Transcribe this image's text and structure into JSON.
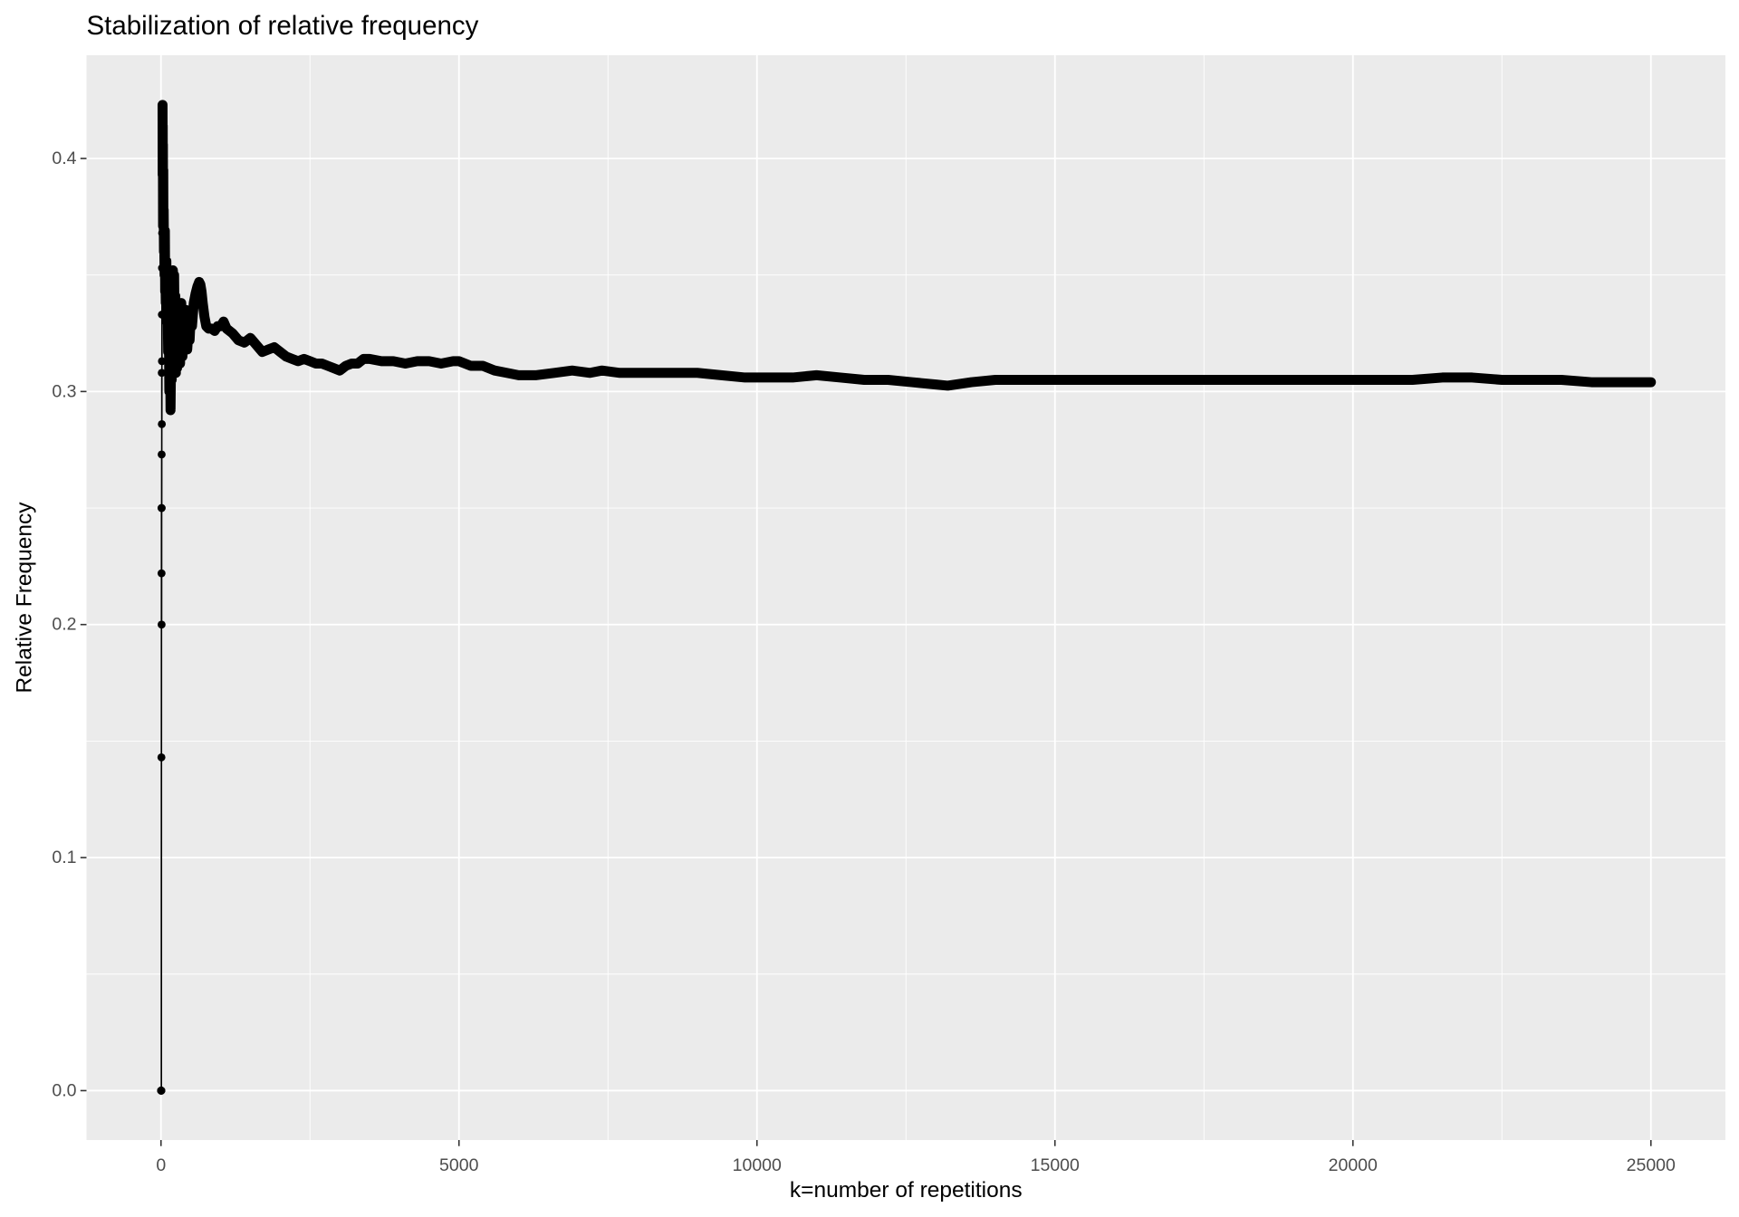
{
  "chart_data": {
    "type": "line",
    "markers": true,
    "title": "Stabilization of relative frequency",
    "xlabel": "k=number of repetitions",
    "ylabel": "Relative Frequency",
    "xlim": [
      -1250,
      26250
    ],
    "ylim": [
      -0.0212,
      0.4443
    ],
    "x_ticks": [
      0,
      5000,
      10000,
      15000,
      20000,
      25000
    ],
    "x_tick_labels": [
      "0",
      "5000",
      "10000",
      "15000",
      "20000",
      "25000"
    ],
    "y_ticks": [
      0.0,
      0.1,
      0.2,
      0.3,
      0.4
    ],
    "y_tick_labels": [
      "0.0",
      "0.1",
      "0.2",
      "0.3",
      "0.4"
    ],
    "grid": true,
    "colors": {
      "panel": "#EBEBEB",
      "grid": "#FFFFFF",
      "series": "#000000"
    },
    "series": [
      {
        "points": [
          [
            1,
            0
          ],
          [
            2,
            0
          ],
          [
            3,
            0
          ],
          [
            4,
            0
          ],
          [
            5,
            0
          ],
          [
            6,
            0
          ],
          [
            7,
            0.143
          ],
          [
            8,
            0.25
          ],
          [
            9,
            0.222
          ],
          [
            10,
            0.2
          ],
          [
            11,
            0.273
          ],
          [
            12,
            0.25
          ],
          [
            13,
            0.308
          ],
          [
            14,
            0.286
          ],
          [
            15,
            0.333
          ],
          [
            16,
            0.313
          ],
          [
            17,
            0.353
          ],
          [
            18,
            0.389
          ],
          [
            19,
            0.368
          ],
          [
            20,
            0.4
          ],
          [
            21,
            0.381
          ],
          [
            22,
            0.409
          ],
          [
            23,
            0.391
          ],
          [
            24,
            0.417
          ],
          [
            25,
            0.4
          ],
          [
            26,
            0.423
          ],
          [
            27,
            0.407
          ],
          [
            28,
            0.393
          ],
          [
            29,
            0.414
          ],
          [
            30,
            0.4
          ],
          [
            32,
            0.406
          ],
          [
            35,
            0.371
          ],
          [
            38,
            0.395
          ],
          [
            40,
            0.375
          ],
          [
            45,
            0.378
          ],
          [
            50,
            0.36
          ],
          [
            55,
            0.364
          ],
          [
            60,
            0.35
          ],
          [
            65,
            0.369
          ],
          [
            70,
            0.343
          ],
          [
            75,
            0.347
          ],
          [
            80,
            0.338
          ],
          [
            90,
            0.356
          ],
          [
            100,
            0.33
          ],
          [
            110,
            0.345
          ],
          [
            120,
            0.317
          ],
          [
            130,
            0.338
          ],
          [
            140,
            0.3
          ],
          [
            150,
            0.327
          ],
          [
            160,
            0.292
          ],
          [
            170,
            0.318
          ],
          [
            180,
            0.305
          ],
          [
            190,
            0.339
          ],
          [
            200,
            0.352
          ],
          [
            210,
            0.33
          ],
          [
            220,
            0.35
          ],
          [
            230,
            0.322
          ],
          [
            240,
            0.341
          ],
          [
            250,
            0.308
          ],
          [
            260,
            0.326
          ],
          [
            270,
            0.31
          ],
          [
            280,
            0.335
          ],
          [
            290,
            0.318
          ],
          [
            300,
            0.331
          ],
          [
            320,
            0.312
          ],
          [
            340,
            0.338
          ],
          [
            360,
            0.315
          ],
          [
            380,
            0.329
          ],
          [
            400,
            0.32
          ],
          [
            420,
            0.335
          ],
          [
            440,
            0.318
          ],
          [
            460,
            0.326
          ],
          [
            480,
            0.322
          ],
          [
            500,
            0.333
          ],
          [
            520,
            0.328
          ],
          [
            550,
            0.338
          ],
          [
            580,
            0.342
          ],
          [
            610,
            0.345
          ],
          [
            640,
            0.347
          ],
          [
            660,
            0.346
          ],
          [
            680,
            0.343
          ],
          [
            700,
            0.338
          ],
          [
            730,
            0.332
          ],
          [
            760,
            0.328
          ],
          [
            800,
            0.327
          ],
          [
            850,
            0.327
          ],
          [
            900,
            0.326
          ],
          [
            950,
            0.328
          ],
          [
            1000,
            0.328
          ],
          [
            1050,
            0.33
          ],
          [
            1100,
            0.327
          ],
          [
            1200,
            0.325
          ],
          [
            1300,
            0.322
          ],
          [
            1400,
            0.321
          ],
          [
            1500,
            0.323
          ],
          [
            1600,
            0.32
          ],
          [
            1700,
            0.317
          ],
          [
            1800,
            0.318
          ],
          [
            1900,
            0.319
          ],
          [
            2000,
            0.317
          ],
          [
            2100,
            0.315
          ],
          [
            2200,
            0.314
          ],
          [
            2300,
            0.313
          ],
          [
            2400,
            0.314
          ],
          [
            2500,
            0.313
          ],
          [
            2600,
            0.312
          ],
          [
            2700,
            0.312
          ],
          [
            2800,
            0.311
          ],
          [
            2900,
            0.31
          ],
          [
            3000,
            0.309
          ],
          [
            3100,
            0.311
          ],
          [
            3200,
            0.312
          ],
          [
            3300,
            0.312
          ],
          [
            3400,
            0.314
          ],
          [
            3500,
            0.314
          ],
          [
            3700,
            0.313
          ],
          [
            3900,
            0.313
          ],
          [
            4100,
            0.312
          ],
          [
            4300,
            0.313
          ],
          [
            4500,
            0.313
          ],
          [
            4700,
            0.312
          ],
          [
            4900,
            0.313
          ],
          [
            5000,
            0.313
          ],
          [
            5200,
            0.311
          ],
          [
            5400,
            0.311
          ],
          [
            5600,
            0.309
          ],
          [
            5800,
            0.308
          ],
          [
            6000,
            0.307
          ],
          [
            6300,
            0.307
          ],
          [
            6600,
            0.308
          ],
          [
            6900,
            0.309
          ],
          [
            7200,
            0.308
          ],
          [
            7400,
            0.309
          ],
          [
            7700,
            0.308
          ],
          [
            8000,
            0.308
          ],
          [
            8300,
            0.308
          ],
          [
            8600,
            0.308
          ],
          [
            9000,
            0.308
          ],
          [
            9400,
            0.307
          ],
          [
            9800,
            0.306
          ],
          [
            10200,
            0.306
          ],
          [
            10600,
            0.306
          ],
          [
            11000,
            0.307
          ],
          [
            11400,
            0.306
          ],
          [
            11800,
            0.305
          ],
          [
            12200,
            0.305
          ],
          [
            12600,
            0.304
          ],
          [
            13000,
            0.303
          ],
          [
            13200,
            0.3025
          ],
          [
            13600,
            0.304
          ],
          [
            14000,
            0.305
          ],
          [
            14500,
            0.305
          ],
          [
            15000,
            0.305
          ],
          [
            15500,
            0.305
          ],
          [
            16000,
            0.305
          ],
          [
            16500,
            0.305
          ],
          [
            17000,
            0.305
          ],
          [
            17500,
            0.305
          ],
          [
            18000,
            0.305
          ],
          [
            18500,
            0.305
          ],
          [
            19000,
            0.305
          ],
          [
            19500,
            0.305
          ],
          [
            20000,
            0.305
          ],
          [
            20500,
            0.305
          ],
          [
            21000,
            0.305
          ],
          [
            21500,
            0.306
          ],
          [
            22000,
            0.306
          ],
          [
            22500,
            0.305
          ],
          [
            23000,
            0.305
          ],
          [
            23500,
            0.305
          ],
          [
            24000,
            0.304
          ],
          [
            24500,
            0.304
          ],
          [
            25000,
            0.304
          ]
        ]
      }
    ]
  }
}
